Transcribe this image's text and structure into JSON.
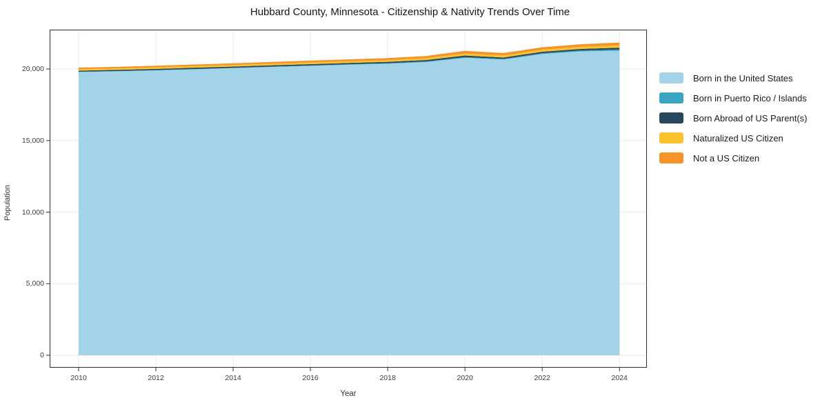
{
  "chart": {
    "title": "Hubbard County, Minnesota - Citizenship & Nativity Trends Over Time",
    "xlabel": "Year",
    "ylabel": "Population"
  },
  "axes": {
    "x_ticks": [
      2010,
      2012,
      2014,
      2016,
      2018,
      2020,
      2022,
      2024
    ],
    "y_ticks": [
      0,
      5000,
      10000,
      15000,
      20000
    ],
    "y_tick_labels": [
      "0",
      "5,000",
      "10,000",
      "15,000",
      "20,000"
    ]
  },
  "colors": {
    "background": "#ffffff",
    "grid": "#e9e9e9",
    "axis_border": "#2b2b2b",
    "tick": "#2b2b2b",
    "text": "#1a1a1a"
  },
  "legend": {
    "position": "right",
    "items": [
      {
        "label": "Born in the United States",
        "color": "#a2d3e8"
      },
      {
        "label": "Born in Puerto Rico / Islands",
        "color": "#3aa5c1"
      },
      {
        "label": "Born Abroad of US Parent(s)",
        "color": "#25485c"
      },
      {
        "label": "Naturalized US Citizen",
        "color": "#fcc22d"
      },
      {
        "label": "Not a US Citizen",
        "color": "#f79429"
      }
    ]
  },
  "chart_data": {
    "type": "area",
    "stacked": true,
    "title": "Hubbard County, Minnesota - Citizenship & Nativity Trends Over Time",
    "xlabel": "Year",
    "ylabel": "Population",
    "grid": true,
    "legend_position": "right",
    "xlim": [
      2009.25,
      2024.71
    ],
    "ylim": [
      -870,
      22750
    ],
    "x": [
      2010,
      2011,
      2012,
      2013,
      2014,
      2015,
      2016,
      2017,
      2018,
      2019,
      2020,
      2021,
      2022,
      2023,
      2024
    ],
    "series": [
      {
        "name": "Born in the United States",
        "color": "#a2d3e8",
        "values": [
          19790,
          19840,
          19900,
          19980,
          20060,
          20140,
          20220,
          20300,
          20370,
          20490,
          20780,
          20660,
          21050,
          21230,
          21280
        ]
      },
      {
        "name": "Born in Puerto Rico / Islands",
        "color": "#3aa5c1",
        "values": [
          20,
          20,
          25,
          25,
          25,
          30,
          30,
          35,
          35,
          40,
          50,
          45,
          55,
          65,
          85
        ]
      },
      {
        "name": "Born Abroad of US Parent(s)",
        "color": "#25485c",
        "values": [
          80,
          80,
          85,
          85,
          85,
          90,
          90,
          90,
          95,
          100,
          110,
          100,
          105,
          110,
          125
        ]
      },
      {
        "name": "Naturalized US Citizen",
        "color": "#fcc22d",
        "values": [
          100,
          100,
          105,
          105,
          110,
          110,
          115,
          115,
          120,
          130,
          140,
          135,
          140,
          145,
          160
        ]
      },
      {
        "name": "Not a US Citizen",
        "color": "#f79429",
        "values": [
          110,
          115,
          115,
          120,
          120,
          125,
          130,
          135,
          140,
          155,
          185,
          175,
          170,
          180,
          200
        ]
      }
    ]
  }
}
